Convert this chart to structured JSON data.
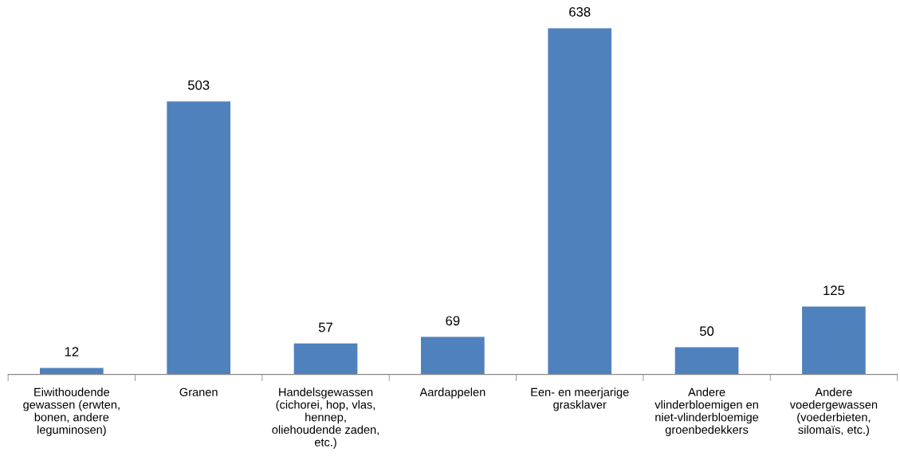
{
  "chart_data": {
    "type": "bar",
    "categories": [
      "Eiwithoudende\ngewassen (erwten,\nbonen, andere\nleguminosen)",
      "Granen",
      "Handelsgewassen\n(cichorei, hop, vlas,\nhennep,\noliehoudende zaden,\netc.)",
      "Aardappelen",
      "Een- en meerjarige\ngrasklaver",
      "Andere\nvlinderbloemigen en\nniet-vlinderbloemige\ngroenbedekkers",
      "Andere\nvoedergewassen\n(voederbieten,\nsilomaïs, etc.)"
    ],
    "values": [
      12,
      503,
      57,
      69,
      638,
      50,
      125
    ],
    "color": "#4f81bd",
    "data_labels": true,
    "grid": false,
    "legend": false
  }
}
